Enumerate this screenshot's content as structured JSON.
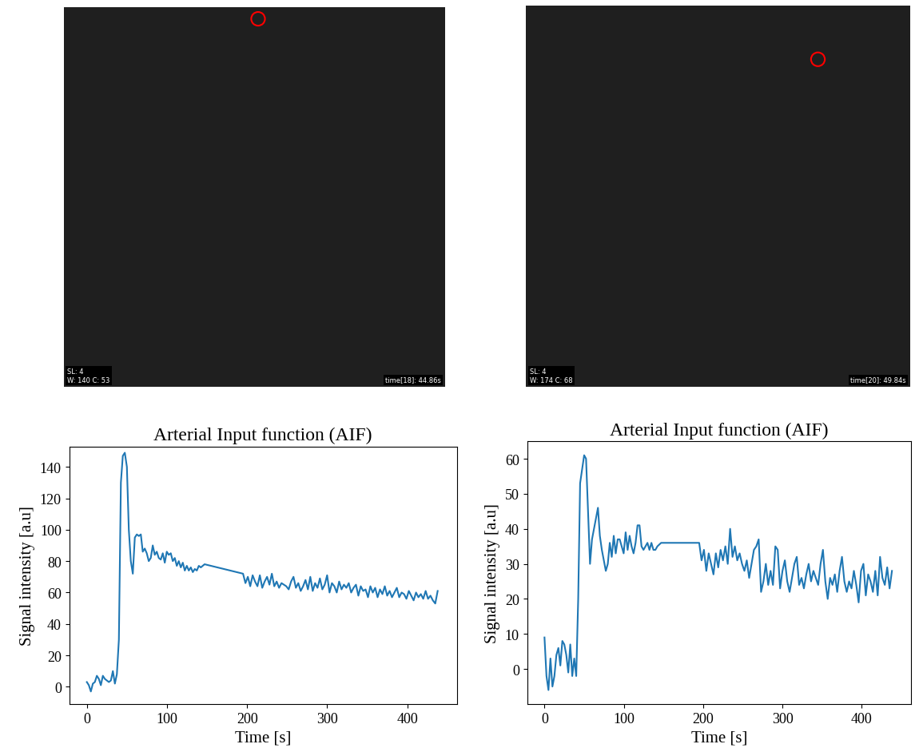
{
  "chart_data": [
    {
      "type": "image",
      "annotations": [
        "SL: 4",
        "W: 140 C: 53",
        "time[18]: 44.86s"
      ]
    },
    {
      "type": "image",
      "annotations": [
        "SL: 4",
        "W: 174 C: 68",
        "time[20]: 49.84s"
      ]
    },
    {
      "type": "line",
      "title": "Arterial Input function (AIF)",
      "x_label": "Time [s]",
      "y_label": "Signal intensity [a.u]",
      "color": "#1f77b4",
      "x": [
        0,
        2.5,
        5,
        7.5,
        10,
        12.5,
        15,
        17.5,
        20,
        22.5,
        25,
        27.5,
        30,
        32.5,
        35,
        37.5,
        40,
        42.5,
        44.9,
        47.4,
        50,
        52.4,
        54.9,
        57.4,
        59.9,
        62.4,
        64.9,
        67.4,
        69.8,
        72.3,
        74.8,
        77.3,
        79.8,
        82.3,
        84.8,
        87.3,
        89.8,
        92.3,
        94.8,
        97.3,
        99.8,
        102.3,
        104.8,
        107.3,
        109.8,
        112.3,
        114.8,
        117.3,
        119.8,
        122.3,
        124.8,
        127.3,
        129.8,
        132.3,
        134.8,
        137.3,
        139.8,
        142.3,
        147,
        195,
        198,
        201,
        204,
        207,
        210,
        213,
        216,
        219,
        222,
        225,
        228,
        231,
        234,
        237,
        240,
        243,
        246,
        249,
        252,
        255,
        258,
        261,
        264,
        267,
        270,
        273,
        276,
        279,
        282,
        285,
        288,
        291,
        294,
        297,
        300,
        303,
        306,
        309,
        312,
        315,
        318,
        321,
        324,
        327,
        330,
        333,
        336,
        339,
        342,
        345,
        348,
        351,
        354,
        357,
        360,
        363,
        366,
        369,
        372,
        375,
        378,
        381,
        384,
        387,
        390,
        393,
        396,
        399,
        402,
        405,
        408,
        411,
        414,
        417,
        420,
        423,
        426,
        429,
        432,
        435,
        438
      ],
      "values": [
        3,
        1,
        -3,
        2,
        3,
        7,
        5,
        1,
        7,
        5,
        4,
        3,
        4,
        10,
        2,
        8,
        30,
        130,
        147,
        149,
        140,
        100,
        80,
        72,
        95,
        97,
        96,
        97,
        86,
        88,
        85,
        80,
        82,
        90,
        84,
        86,
        82,
        81,
        85,
        79,
        86,
        84,
        85,
        80,
        82,
        77,
        80,
        76,
        79,
        74,
        77,
        74,
        76,
        73,
        75,
        74,
        77,
        76,
        78,
        72,
        66,
        70,
        64,
        71,
        67,
        64,
        71,
        63,
        67,
        70,
        65,
        72,
        64,
        67,
        63,
        66,
        65,
        64,
        62,
        67,
        70,
        63,
        66,
        61,
        64,
        68,
        62,
        70,
        61,
        66,
        63,
        69,
        62,
        65,
        71,
        60,
        66,
        64,
        60,
        67,
        62,
        65,
        63,
        66,
        60,
        63,
        65,
        58,
        64,
        61,
        62,
        57,
        64,
        60,
        63,
        57,
        62,
        59,
        64,
        58,
        61,
        57,
        60,
        63,
        57,
        60,
        59,
        56,
        61,
        58,
        55,
        60,
        57,
        59,
        56,
        61,
        56,
        58,
        55,
        53,
        61
      ],
      "xlim": [
        -22,
        462
      ],
      "ylim": [
        -11,
        153
      ],
      "xticks": [
        0,
        100,
        200,
        300,
        400
      ],
      "yticks": [
        0,
        20,
        40,
        60,
        80,
        100,
        120,
        140
      ]
    },
    {
      "type": "line",
      "title": "Arterial Input function (AIF)",
      "x_label": "Time [s]",
      "y_label": "Signal intensity [a.u]",
      "color": "#1f77b4",
      "x": [
        0,
        2.5,
        5,
        7.5,
        10,
        12.5,
        15,
        17.5,
        20,
        22.5,
        25,
        27.5,
        30,
        32.5,
        35,
        37.5,
        40,
        42.5,
        44.9,
        47.4,
        50,
        52.4,
        54.9,
        57.4,
        59.9,
        62.4,
        64.9,
        67.4,
        69.8,
        72.3,
        74.8,
        77.3,
        79.8,
        82.3,
        84.8,
        87.3,
        89.8,
        92.3,
        94.8,
        97.3,
        99.8,
        102.3,
        104.8,
        107.3,
        109.8,
        112.3,
        114.8,
        117.3,
        119.8,
        122.3,
        124.8,
        127.3,
        129.8,
        132.3,
        134.8,
        137.3,
        139.8,
        142.3,
        147,
        195,
        198,
        201,
        204,
        207,
        210,
        213,
        216,
        219,
        222,
        225,
        228,
        231,
        234,
        237,
        240,
        243,
        246,
        249,
        252,
        255,
        258,
        261,
        264,
        267,
        270,
        273,
        276,
        279,
        282,
        285,
        288,
        291,
        294,
        297,
        300,
        303,
        306,
        309,
        312,
        315,
        318,
        321,
        324,
        327,
        330,
        333,
        336,
        339,
        342,
        345,
        348,
        351,
        354,
        357,
        360,
        363,
        366,
        369,
        372,
        375,
        378,
        381,
        384,
        387,
        390,
        393,
        396,
        399,
        402,
        405,
        408,
        411,
        414,
        417,
        420,
        423,
        426,
        429,
        432,
        435,
        438
      ],
      "values": [
        9,
        -2,
        -6,
        3,
        -5,
        -2,
        4,
        6,
        1,
        8,
        7,
        4,
        -1,
        7,
        -2,
        3,
        -2,
        20,
        53,
        57,
        61,
        60,
        45,
        30,
        37,
        40,
        43,
        46,
        38,
        34,
        31,
        28,
        30,
        36,
        32,
        38,
        33,
        37,
        37,
        35,
        33,
        39,
        34,
        38,
        35,
        33,
        36,
        41,
        41,
        35,
        34,
        35,
        36,
        34,
        36,
        34,
        34,
        35,
        36,
        36,
        31,
        34,
        28,
        33,
        30,
        27,
        33,
        29,
        34,
        31,
        35,
        30,
        40,
        32,
        35,
        31,
        33,
        30,
        28,
        31,
        26,
        30,
        34,
        35,
        37,
        22,
        25,
        30,
        24,
        28,
        24,
        35,
        34,
        23,
        28,
        31,
        25,
        22,
        26,
        30,
        32,
        24,
        26,
        23,
        27,
        30,
        25,
        28,
        26,
        24,
        30,
        34,
        25,
        20,
        26,
        24,
        27,
        22,
        28,
        32,
        25,
        22,
        25,
        23,
        28,
        24,
        19,
        28,
        30,
        21,
        27,
        25,
        22,
        28,
        21,
        32,
        26,
        24,
        29,
        23,
        28
      ],
      "xlim": [
        -22,
        462
      ],
      "ylim": [
        -10,
        65
      ],
      "xticks": [
        0,
        100,
        200,
        300,
        400
      ],
      "yticks": [
        0,
        10,
        20,
        30,
        40,
        50,
        60
      ]
    }
  ]
}
